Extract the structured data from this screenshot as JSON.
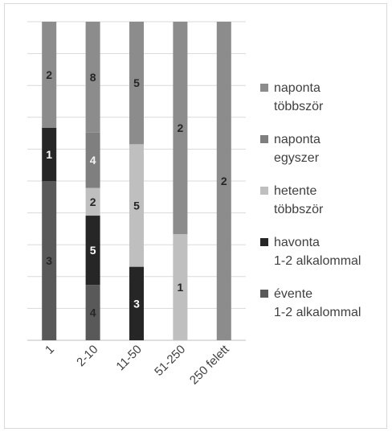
{
  "chart_data": {
    "type": "bar",
    "stacked": true,
    "normalized": true,
    "categories": [
      "1",
      "2-10",
      "11-50",
      "51-250",
      "250 felett"
    ],
    "series": [
      {
        "name": "évente 1-2 alkalommal",
        "color": "#595959",
        "values": [
          3,
          4,
          0,
          0,
          0
        ],
        "labels": [
          "3",
          "4",
          "",
          "",
          ""
        ],
        "label_color": "#262626"
      },
      {
        "name": "havonta 1-2 alkalommal",
        "color": "#262626",
        "values": [
          1,
          5,
          3,
          0,
          0
        ],
        "labels": [
          "1",
          "5",
          "3",
          "",
          ""
        ],
        "label_color": "#ffffff"
      },
      {
        "name": "hetente többször",
        "color": "#bfbfbf",
        "values": [
          0,
          2,
          5,
          1,
          0
        ],
        "labels": [
          "",
          "2",
          "5",
          "1",
          ""
        ],
        "label_color": "#262626"
      },
      {
        "name": "naponta egyszer",
        "color": "#7f7f7f",
        "values": [
          0,
          4,
          0,
          0,
          0
        ],
        "labels": [
          "",
          "4",
          "",
          "",
          ""
        ],
        "label_color": "#f2f2f2"
      },
      {
        "name": "naponta többször",
        "color": "#8c8c8c",
        "values": [
          2,
          8,
          5,
          2,
          2
        ],
        "labels": [
          "2",
          "8",
          "5",
          "2",
          "2"
        ],
        "label_color": "#262626"
      }
    ],
    "legend_order": [
      4,
      3,
      2,
      1,
      0
    ],
    "legend_position": "right",
    "grid": true,
    "ylim": [
      0,
      1
    ]
  }
}
